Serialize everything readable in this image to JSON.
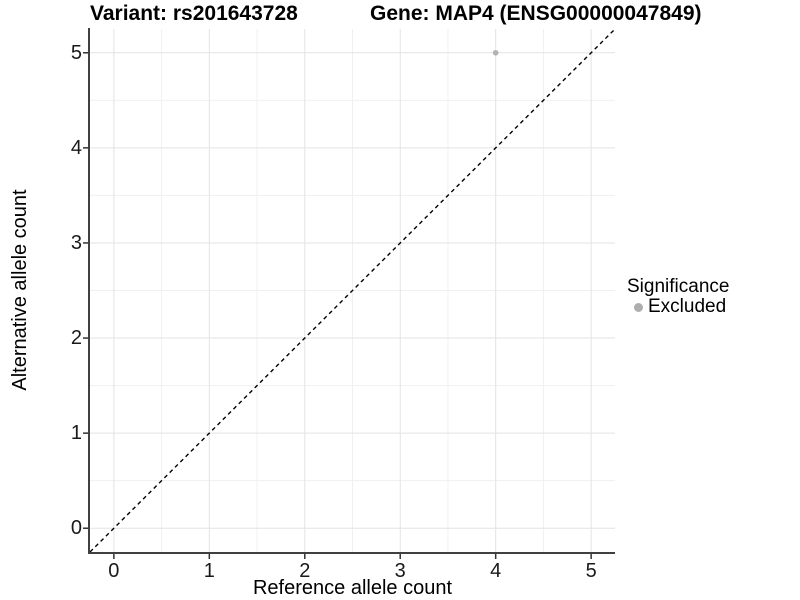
{
  "chart_data": {
    "type": "scatter",
    "title_left": "Variant: rs201643728",
    "title_right": "Gene: MAP4 (ENSG00000047849)",
    "xlabel": "Reference allele count",
    "ylabel": "Alternative allele count",
    "xlim": [
      -0.25,
      5.25
    ],
    "ylim": [
      -0.25,
      5.25
    ],
    "xticks": [
      0,
      1,
      2,
      3,
      4,
      5
    ],
    "yticks": [
      0,
      1,
      2,
      3,
      4,
      5
    ],
    "x_minor": [
      0.5,
      1.5,
      2.5,
      3.5,
      4.5
    ],
    "y_minor": [
      0.5,
      1.5,
      2.5,
      3.5,
      4.5
    ],
    "grid": true,
    "reference_line": {
      "slope": 1,
      "intercept": 0,
      "style": "dashed",
      "color": "#000000"
    },
    "series": [
      {
        "name": "Excluded",
        "color": "#b3b3b3",
        "points": [
          {
            "x": 4,
            "y": 5
          }
        ]
      }
    ],
    "legend": {
      "position": "right",
      "title": "Significance",
      "entries": [
        {
          "label": "Excluded",
          "color": "#aeaeae"
        }
      ]
    }
  },
  "colors": {
    "background": "#ffffff",
    "grid_major": "#e3e3e3",
    "grid_minor": "#f0f0f0",
    "axis_line": "#404040",
    "tick_mark": "#333333",
    "tick_text": "#1a1a1a",
    "text": "#000000"
  }
}
